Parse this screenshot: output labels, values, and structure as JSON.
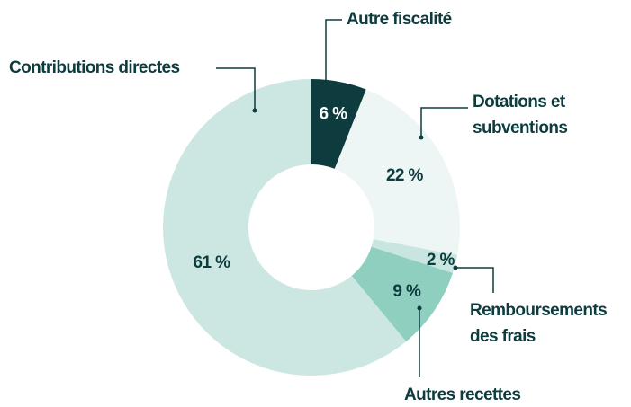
{
  "chart_data": {
    "type": "donut",
    "categories": [
      "Autre fiscalité",
      "Dotations et subventions",
      "Remboursements des frais",
      "Autres recettes",
      "Contributions directes"
    ],
    "values": [
      6,
      22,
      2,
      9,
      61
    ],
    "value_labels": [
      "6 %",
      "22 %",
      "2 %",
      "9 %",
      "61 %"
    ],
    "colors": [
      "#0d3b3e",
      "#eef6f5",
      "#c8e6df",
      "#8ecfc0",
      "#cce7e1"
    ]
  }
}
